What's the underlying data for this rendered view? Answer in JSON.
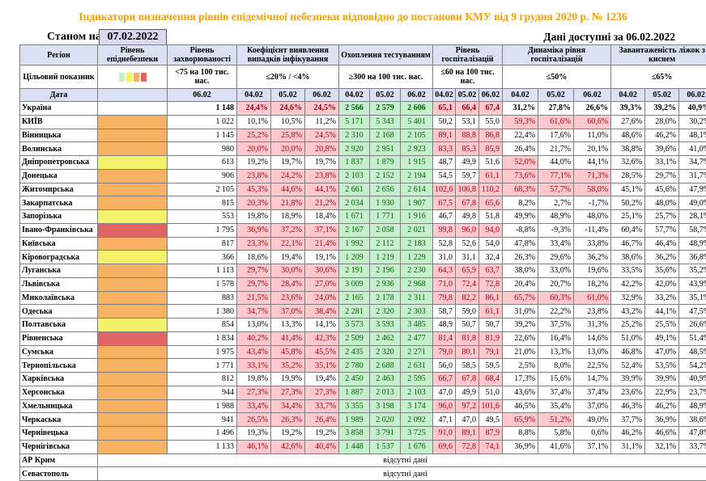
{
  "title": "Індикатори визначення рівнів епідемічної небезпеки відповідно до постанови КМУ від 9 грудня 2020 р. № 1236",
  "as_of_label": "Станом на",
  "as_of_date": "07.02.2022",
  "data_available": "Дані доступні за 06.02.2022",
  "headers": {
    "region": "Регіон",
    "target": "Цільовий показник",
    "date": "Дата",
    "level": "Рівень епіднебезпеки",
    "incidence": "Рівень захворюваності",
    "incidence_target": "<75 на 100 тис. нас.",
    "positivity": "Коефіцієнт виявлення випадків інфікування",
    "positivity_target": "≤20% / <4%",
    "testing": "Охоплення тестуванням",
    "testing_target": "≥300 на 100 тис. нас.",
    "hosp": "Рівень госпіталізацій",
    "hosp_target": "≤60 на 100 тис. нас.",
    "dyn": "Динаміка рівня госпіталізацій",
    "dyn_target": "≤50%",
    "beds": "Завантаженість ліжок з киснем",
    "beds_target": "≤65%",
    "d1": "04.02",
    "d2": "05.02",
    "d3": "06.02"
  },
  "legend_colors": [
    "#c6efce",
    "#f4f26b",
    "#f7b162",
    "#e06666"
  ],
  "na_text": "відсутні дані",
  "rows": [
    {
      "name": "Україна",
      "level": "w",
      "inc": "1 148",
      "pos": [
        "24,4%",
        "24,6%",
        "24,5%"
      ],
      "pos_c": "r",
      "test": [
        "2 566",
        "2 579",
        "2 606"
      ],
      "test_c": "g",
      "hosp": [
        "65,1",
        "66,4",
        "67,4"
      ],
      "hosp_c": "r",
      "dyn": [
        "31,2%",
        "27,8%",
        "26,6%"
      ],
      "dyn_c": [
        "",
        "",
        ""
      ],
      "beds": [
        "39,3%",
        "39,2%",
        "40,9%"
      ],
      "total": true
    },
    {
      "name": "КИЇВ",
      "level": "o",
      "inc": "1 022",
      "pos": [
        "10,1%",
        "10,5%",
        "11,2%"
      ],
      "pos_c": "",
      "test": [
        "5 171",
        "5 343",
        "5 401"
      ],
      "test_c": "g",
      "hosp": [
        "50,2",
        "53,1",
        "55,0"
      ],
      "hosp_c": "",
      "dyn": [
        "59,3%",
        "61,6%",
        "60,6%"
      ],
      "dyn_c": [
        "r",
        "r",
        "r"
      ],
      "beds": [
        "27,6%",
        "28,0%",
        "30,2%"
      ]
    },
    {
      "name": "Вінницька",
      "level": "o",
      "inc": "1 145",
      "pos": [
        "25,2%",
        "25,8%",
        "24,5%"
      ],
      "pos_c": "r",
      "test": [
        "2 310",
        "2 168",
        "2 105"
      ],
      "test_c": "g",
      "hosp": [
        "89,1",
        "88,8",
        "86,8"
      ],
      "hosp_c": "r",
      "dyn": [
        "22,4%",
        "17,6%",
        "11,0%"
      ],
      "dyn_c": [
        "",
        "",
        ""
      ],
      "beds": [
        "48,6%",
        "46,2%",
        "48,1%"
      ]
    },
    {
      "name": "Волинська",
      "level": "o",
      "inc": "980",
      "pos": [
        "20,0%",
        "20,0%",
        "20,8%"
      ],
      "pos_c": "r",
      "test": [
        "2 920",
        "2 951",
        "2 923"
      ],
      "test_c": "g",
      "hosp": [
        "83,3",
        "85,3",
        "85,9"
      ],
      "hosp_c": "r",
      "dyn": [
        "26,4%",
        "21,7%",
        "20,1%"
      ],
      "dyn_c": [
        "",
        "",
        ""
      ],
      "beds": [
        "38,8%",
        "39,6%",
        "41,0%"
      ]
    },
    {
      "name": "Дніпропетровська",
      "level": "y",
      "inc": "613",
      "pos": [
        "19,2%",
        "19,7%",
        "19,7%"
      ],
      "pos_c": "",
      "test": [
        "1 837",
        "1 879",
        "1 915"
      ],
      "test_c": "g",
      "hosp": [
        "48,7",
        "49,9",
        "51,6"
      ],
      "hosp_c": "",
      "dyn": [
        "52,0%",
        "44,0%",
        "44,1%"
      ],
      "dyn_c": [
        "r",
        "",
        ""
      ],
      "beds": [
        "32,6%",
        "33,1%",
        "34,7%"
      ]
    },
    {
      "name": "Донецька",
      "level": "o",
      "inc": "906",
      "pos": [
        "23,8%",
        "24,2%",
        "23,8%"
      ],
      "pos_c": "r",
      "test": [
        "2 103",
        "2 152",
        "2 194"
      ],
      "test_c": "g",
      "hosp": [
        "54,5",
        "59,7",
        "61,1"
      ],
      "hosp_c": "r3",
      "dyn": [
        "73,6%",
        "77,1%",
        "71,3%"
      ],
      "dyn_c": [
        "r",
        "r",
        "r"
      ],
      "beds": [
        "28,5%",
        "29,7%",
        "31,7%"
      ]
    },
    {
      "name": "Житомирська",
      "level": "o",
      "inc": "2 105",
      "pos": [
        "45,3%",
        "44,6%",
        "44,1%"
      ],
      "pos_c": "r",
      "test": [
        "2 661",
        "2 656",
        "2 614"
      ],
      "test_c": "g",
      "hosp": [
        "102,6",
        "106,8",
        "110,2"
      ],
      "hosp_c": "r",
      "dyn": [
        "68,3%",
        "57,7%",
        "58,0%"
      ],
      "dyn_c": [
        "r",
        "r",
        "r"
      ],
      "beds": [
        "45,1%",
        "45,6%",
        "47,9%"
      ]
    },
    {
      "name": "Закарпатська",
      "level": "o",
      "inc": "815",
      "pos": [
        "20,3%",
        "21,8%",
        "21,2%"
      ],
      "pos_c": "r",
      "test": [
        "2 034",
        "1 930",
        "1 907"
      ],
      "test_c": "g",
      "hosp": [
        "67,5",
        "67,8",
        "65,6"
      ],
      "hosp_c": "r",
      "dyn": [
        "8,2%",
        "2,7%",
        "-1,7%"
      ],
      "dyn_c": [
        "",
        "",
        ""
      ],
      "beds": [
        "50,2%",
        "48,0%",
        "49,0%"
      ]
    },
    {
      "name": "Запорізька",
      "level": "y",
      "inc": "553",
      "pos": [
        "19,8%",
        "18,9%",
        "18,4%"
      ],
      "pos_c": "",
      "test": [
        "1 671",
        "1 771",
        "1 916"
      ],
      "test_c": "g",
      "hosp": [
        "46,7",
        "49,8",
        "51,8"
      ],
      "hosp_c": "",
      "dyn": [
        "49,9%",
        "48,9%",
        "48,0%"
      ],
      "dyn_c": [
        "",
        "",
        ""
      ],
      "beds": [
        "25,1%",
        "25,7%",
        "28,1%"
      ]
    },
    {
      "name": "Івано-Франківська",
      "level": "r",
      "inc": "1 795",
      "pos": [
        "36,9%",
        "37,2%",
        "37,1%"
      ],
      "pos_c": "r",
      "test": [
        "2 167",
        "2 058",
        "2 021"
      ],
      "test_c": "g",
      "hosp": [
        "99,8",
        "96,0",
        "94,0"
      ],
      "hosp_c": "r",
      "dyn": [
        "-8,8%",
        "-9,3%",
        "-11,4%"
      ],
      "dyn_c": [
        "",
        "",
        ""
      ],
      "beds": [
        "60,4%",
        "57,7%",
        "58,7%"
      ]
    },
    {
      "name": "Київська",
      "level": "o",
      "inc": "817",
      "pos": [
        "23,3%",
        "22,1%",
        "21,4%"
      ],
      "pos_c": "r",
      "test": [
        "1 992",
        "2 112",
        "2 183"
      ],
      "test_c": "g",
      "hosp": [
        "52,8",
        "52,6",
        "54,0"
      ],
      "hosp_c": "",
      "dyn": [
        "47,8%",
        "33,4%",
        "33,8%"
      ],
      "dyn_c": [
        "",
        "",
        ""
      ],
      "beds": [
        "46,7%",
        "46,4%",
        "48,9%"
      ]
    },
    {
      "name": "Кіровоградська",
      "level": "y",
      "inc": "366",
      "pos": [
        "18,6%",
        "19,4%",
        "19,1%"
      ],
      "pos_c": "",
      "test": [
        "1 209",
        "1 219",
        "1 229"
      ],
      "test_c": "g",
      "hosp": [
        "31,0",
        "31,1",
        "32,4"
      ],
      "hosp_c": "",
      "dyn": [
        "26,3%",
        "29,6%",
        "36,2%"
      ],
      "dyn_c": [
        "",
        "",
        ""
      ],
      "beds": [
        "38,6%",
        "36,2%",
        "36,8%"
      ]
    },
    {
      "name": "Луганська",
      "level": "o",
      "inc": "1 113",
      "pos": [
        "29,7%",
        "30,0%",
        "30,6%"
      ],
      "pos_c": "r",
      "test": [
        "2 191",
        "2 196",
        "2 230"
      ],
      "test_c": "g",
      "hosp": [
        "64,3",
        "65,9",
        "63,7"
      ],
      "hosp_c": "r",
      "dyn": [
        "38,0%",
        "33,0%",
        "19,6%"
      ],
      "dyn_c": [
        "",
        "",
        ""
      ],
      "beds": [
        "33,5%",
        "35,6%",
        "35,2%"
      ]
    },
    {
      "name": "Львівська",
      "level": "o",
      "inc": "1 578",
      "pos": [
        "29,7%",
        "28,4%",
        "27,0%"
      ],
      "pos_c": "r",
      "test": [
        "3 009",
        "2 936",
        "2 968"
      ],
      "test_c": "g",
      "hosp": [
        "71,0",
        "72,4",
        "72,8"
      ],
      "hosp_c": "r",
      "dyn": [
        "20,4%",
        "20,7%",
        "18,2%"
      ],
      "dyn_c": [
        "",
        "",
        ""
      ],
      "beds": [
        "42,2%",
        "42,0%",
        "43,9%"
      ]
    },
    {
      "name": "Миколаївська",
      "level": "o",
      "inc": "883",
      "pos": [
        "21,5%",
        "23,6%",
        "24,0%"
      ],
      "pos_c": "r",
      "test": [
        "2 165",
        "2 178",
        "2 311"
      ],
      "test_c": "g",
      "hosp": [
        "79,8",
        "82,2",
        "86,1"
      ],
      "hosp_c": "r",
      "dyn": [
        "65,7%",
        "60,3%",
        "61,0%"
      ],
      "dyn_c": [
        "r",
        "r",
        "r"
      ],
      "beds": [
        "32,9%",
        "33,2%",
        "35,1%"
      ]
    },
    {
      "name": "Одеська",
      "level": "o",
      "inc": "1 380",
      "pos": [
        "34,7%",
        "37,0%",
        "38,4%"
      ],
      "pos_c": "r",
      "test": [
        "2 281",
        "2 320",
        "2 303"
      ],
      "test_c": "g",
      "hosp": [
        "58,7",
        "59,0",
        "61,1"
      ],
      "hosp_c": "r3",
      "dyn": [
        "31,0%",
        "22,2%",
        "23,8%"
      ],
      "dyn_c": [
        "",
        "",
        ""
      ],
      "beds": [
        "43,2%",
        "44,1%",
        "47,5%"
      ]
    },
    {
      "name": "Полтавська",
      "level": "y",
      "inc": "854",
      "pos": [
        "13,0%",
        "13,3%",
        "14,1%"
      ],
      "pos_c": "",
      "test": [
        "3 573",
        "3 593",
        "3 485"
      ],
      "test_c": "g",
      "hosp": [
        "48,9",
        "50,7",
        "50,7"
      ],
      "hosp_c": "",
      "dyn": [
        "39,2%",
        "37,5%",
        "31,3%"
      ],
      "dyn_c": [
        "",
        "",
        ""
      ],
      "beds": [
        "25,2%",
        "25,5%",
        "26,6%"
      ]
    },
    {
      "name": "Рівненська",
      "level": "r",
      "inc": "1 834",
      "pos": [
        "40,2%",
        "41,4%",
        "42,3%"
      ],
      "pos_c": "r",
      "test": [
        "2 509",
        "2 462",
        "2 477"
      ],
      "test_c": "g",
      "hosp": [
        "81,4",
        "81,8",
        "81,9"
      ],
      "hosp_c": "r",
      "dyn": [
        "22,6%",
        "16,4%",
        "14,6%"
      ],
      "dyn_c": [
        "",
        "",
        ""
      ],
      "beds": [
        "51,0%",
        "49,1%",
        "51,4%"
      ]
    },
    {
      "name": "Сумська",
      "level": "o",
      "inc": "1 975",
      "pos": [
        "43,4%",
        "45,8%",
        "45,5%"
      ],
      "pos_c": "r",
      "test": [
        "2 435",
        "2 320",
        "2 271"
      ],
      "test_c": "g",
      "hosp": [
        "79,0",
        "80,1",
        "79,1"
      ],
      "hosp_c": "r",
      "dyn": [
        "21,0%",
        "13,3%",
        "13,0%"
      ],
      "dyn_c": [
        "",
        "",
        ""
      ],
      "beds": [
        "46,8%",
        "47,0%",
        "48,5%"
      ]
    },
    {
      "name": "Тернопільська",
      "level": "o",
      "inc": "1 771",
      "pos": [
        "33,1%",
        "35,2%",
        "35,1%"
      ],
      "pos_c": "r",
      "test": [
        "2 780",
        "2 688",
        "2 631"
      ],
      "test_c": "g",
      "hosp": [
        "56,0",
        "58,5",
        "59,5"
      ],
      "hosp_c": "",
      "dyn": [
        "2,5%",
        "8,0%",
        "22,5%"
      ],
      "dyn_c": [
        "",
        "",
        ""
      ],
      "beds": [
        "52,4%",
        "53,5%",
        "54,2%"
      ]
    },
    {
      "name": "Харківська",
      "level": "o",
      "inc": "812",
      "pos": [
        "19,8%",
        "19,9%",
        "19,4%"
      ],
      "pos_c": "",
      "test": [
        "2 450",
        "2 463",
        "2 595"
      ],
      "test_c": "g",
      "hosp": [
        "66,7",
        "67,8",
        "68,4"
      ],
      "hosp_c": "r",
      "dyn": [
        "17,3%",
        "15,6%",
        "14,7%"
      ],
      "dyn_c": [
        "",
        "",
        ""
      ],
      "beds": [
        "39,9%",
        "39,9%",
        "40,9%"
      ]
    },
    {
      "name": "Херсонська",
      "level": "o",
      "inc": "944",
      "pos": [
        "27,3%",
        "27,3%",
        "27,3%"
      ],
      "pos_c": "r",
      "test": [
        "1 887",
        "2 013",
        "2 103"
      ],
      "test_c": "g",
      "hosp": [
        "47,0",
        "49,9",
        "51,0"
      ],
      "hosp_c": "",
      "dyn": [
        "43,6%",
        "37,4%",
        "37,4%"
      ],
      "dyn_c": [
        "",
        "",
        ""
      ],
      "beds": [
        "23,6%",
        "22,9%",
        "23,7%"
      ]
    },
    {
      "name": "Хмельницька",
      "level": "o",
      "inc": "1 988",
      "pos": [
        "33,4%",
        "34,4%",
        "33,7%"
      ],
      "pos_c": "r",
      "test": [
        "3 355",
        "3 198",
        "3 174"
      ],
      "test_c": "g",
      "hosp": [
        "96,0",
        "97,2",
        "101,6"
      ],
      "hosp_c": "r",
      "dyn": [
        "46,5%",
        "35,4%",
        "37,0%"
      ],
      "dyn_c": [
        "",
        "",
        ""
      ],
      "beds": [
        "46,3%",
        "46,2%",
        "48,9%"
      ]
    },
    {
      "name": "Черкаська",
      "level": "o",
      "inc": "941",
      "pos": [
        "26,5%",
        "26,3%",
        "26,4%"
      ],
      "pos_c": "r",
      "test": [
        "1 989",
        "2 020",
        "2 092"
      ],
      "test_c": "g",
      "hosp": [
        "47,1",
        "47,0",
        "49,5"
      ],
      "hosp_c": "",
      "dyn": [
        "65,9%",
        "51,2%",
        "49,0%"
      ],
      "dyn_c": [
        "r",
        "r",
        ""
      ],
      "beds": [
        "37,7%",
        "36,9%",
        "38,6%"
      ]
    },
    {
      "name": "Чернівецька",
      "level": "o",
      "inc": "1 496",
      "pos": [
        "19,3%",
        "19,2%",
        "19,2%"
      ],
      "pos_c": "",
      "test": [
        "3 858",
        "3 791",
        "3 725"
      ],
      "test_c": "g",
      "hosp": [
        "91,0",
        "89,1",
        "87,9"
      ],
      "hosp_c": "r",
      "dyn": [
        "8,8%",
        "5,8%",
        "0,6%"
      ],
      "dyn_c": [
        "",
        "",
        ""
      ],
      "beds": [
        "46,2%",
        "46,6%",
        "47,8%"
      ]
    },
    {
      "name": "Чернігівська",
      "level": "o",
      "inc": "1 133",
      "pos": [
        "46,1%",
        "42,6%",
        "40,4%"
      ],
      "pos_c": "r",
      "test": [
        "1 448",
        "1 537",
        "1 676"
      ],
      "test_c": "g",
      "hosp": [
        "69,6",
        "72,8",
        "74,1"
      ],
      "hosp_c": "r",
      "dyn": [
        "36,9%",
        "41,6%",
        "37,1%"
      ],
      "dyn_c": [
        "",
        "",
        ""
      ],
      "beds": [
        "31,1%",
        "32,1%",
        "33,7%"
      ]
    }
  ],
  "na_rows": [
    "АР Крим",
    "Севастополь"
  ]
}
